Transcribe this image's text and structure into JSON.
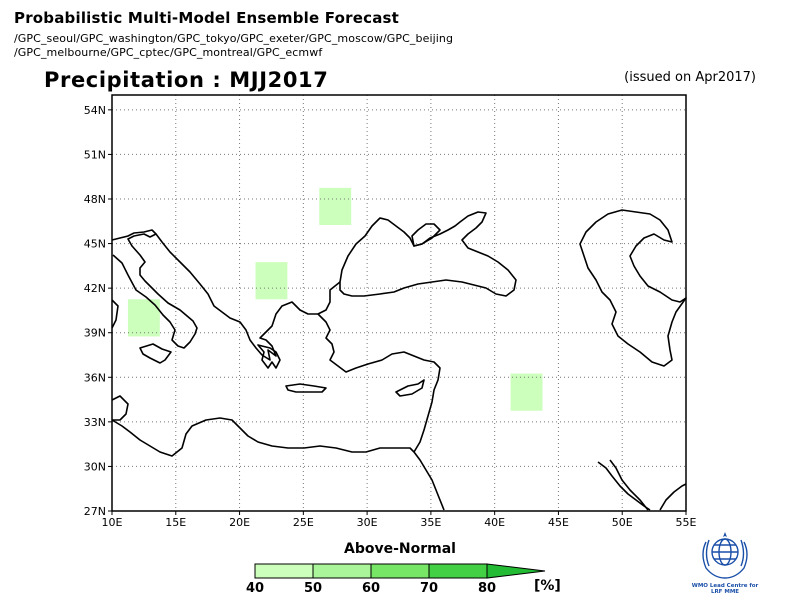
{
  "header": {
    "title": "Probabilistic Multi-Model Ensemble Forecast",
    "centers_line1": "/GPC_seoul/GPC_washington/GPC_tokyo/GPC_exeter/GPC_moscow/GPC_beijing",
    "centers_line2": "/GPC_melbourne/GPC_cptec/GPC_montreal/GPC_ecmwf"
  },
  "map": {
    "variable_title": "Precipitation : MJJ2017",
    "issued": "(issued on Apr2017)",
    "lon_range": [
      10,
      55
    ],
    "lat_range": [
      27,
      55
    ],
    "lon_ticks": [
      "10E",
      "15E",
      "20E",
      "25E",
      "30E",
      "35E",
      "40E",
      "45E",
      "50E",
      "55E"
    ],
    "lat_ticks": [
      "54N",
      "51N",
      "48N",
      "45N",
      "42N",
      "39N",
      "36N",
      "33N",
      "30N",
      "27N"
    ],
    "grid": "dotted",
    "forecast_cells": [
      {
        "lon": [
          11.25,
          13.75
        ],
        "lat": [
          38.75,
          41.25
        ],
        "category": "Above-Normal",
        "probability": "40-50"
      },
      {
        "lon": [
          21.25,
          23.75
        ],
        "lat": [
          41.25,
          43.75
        ],
        "category": "Above-Normal",
        "probability": "40-50"
      },
      {
        "lon": [
          26.25,
          28.75
        ],
        "lat": [
          46.25,
          48.75
        ],
        "category": "Above-Normal",
        "probability": "40-50"
      },
      {
        "lon": [
          41.25,
          43.75
        ],
        "lat": [
          33.75,
          36.25
        ],
        "category": "Above-Normal",
        "probability": "40-50"
      }
    ]
  },
  "legend": {
    "title": "Above-Normal",
    "unit": "[%]",
    "labels": [
      "40",
      "50",
      "60",
      "70",
      "80"
    ],
    "colors": [
      "#ccffbb",
      "#aaf599",
      "#77e566",
      "#44d044",
      "#22bb33"
    ]
  },
  "logo": {
    "caption_line1": "WMO Lead Centre for",
    "caption_line2": "LRF MME"
  }
}
